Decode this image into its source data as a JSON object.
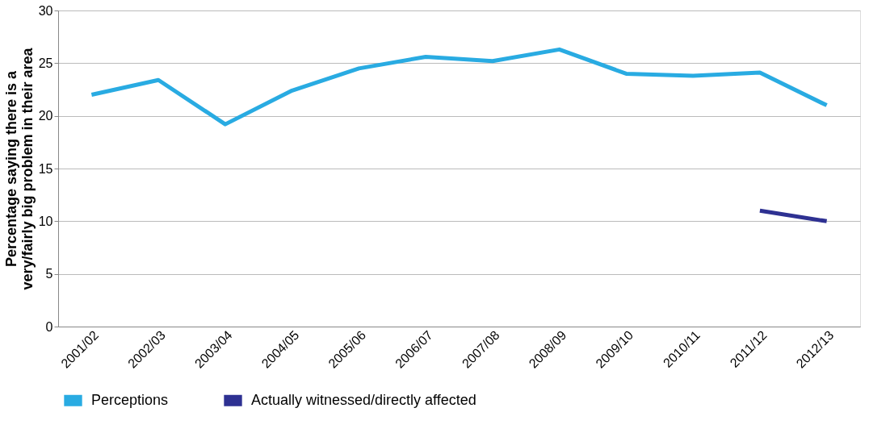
{
  "chart_data": {
    "type": "line",
    "ylabel": "Percentage saying there is a very/fairly big problem in their area",
    "categories": [
      "2001/02",
      "2002/03",
      "2003/04",
      "2004/05",
      "2005/06",
      "2006/07",
      "2007/08",
      "2008/09",
      "2009/10",
      "2010/11",
      "2011/12",
      "2012/13"
    ],
    "series": [
      {
        "name": "Perceptions",
        "color": "#29abe2",
        "values": [
          22.0,
          23.4,
          19.2,
          22.4,
          24.5,
          25.6,
          25.2,
          26.3,
          24.0,
          23.8,
          24.1,
          21.0
        ]
      },
      {
        "name": "Actually witnessed/directly affected",
        "color": "#2e3192",
        "values": [
          null,
          null,
          null,
          null,
          null,
          null,
          null,
          null,
          null,
          null,
          11.0,
          10.0
        ]
      }
    ],
    "ylim": [
      0,
      30
    ],
    "yticks": [
      0,
      5,
      10,
      15,
      20,
      25,
      30
    ],
    "grid": "y",
    "legend": "bottom",
    "marker": "none",
    "line_style": "solid"
  }
}
